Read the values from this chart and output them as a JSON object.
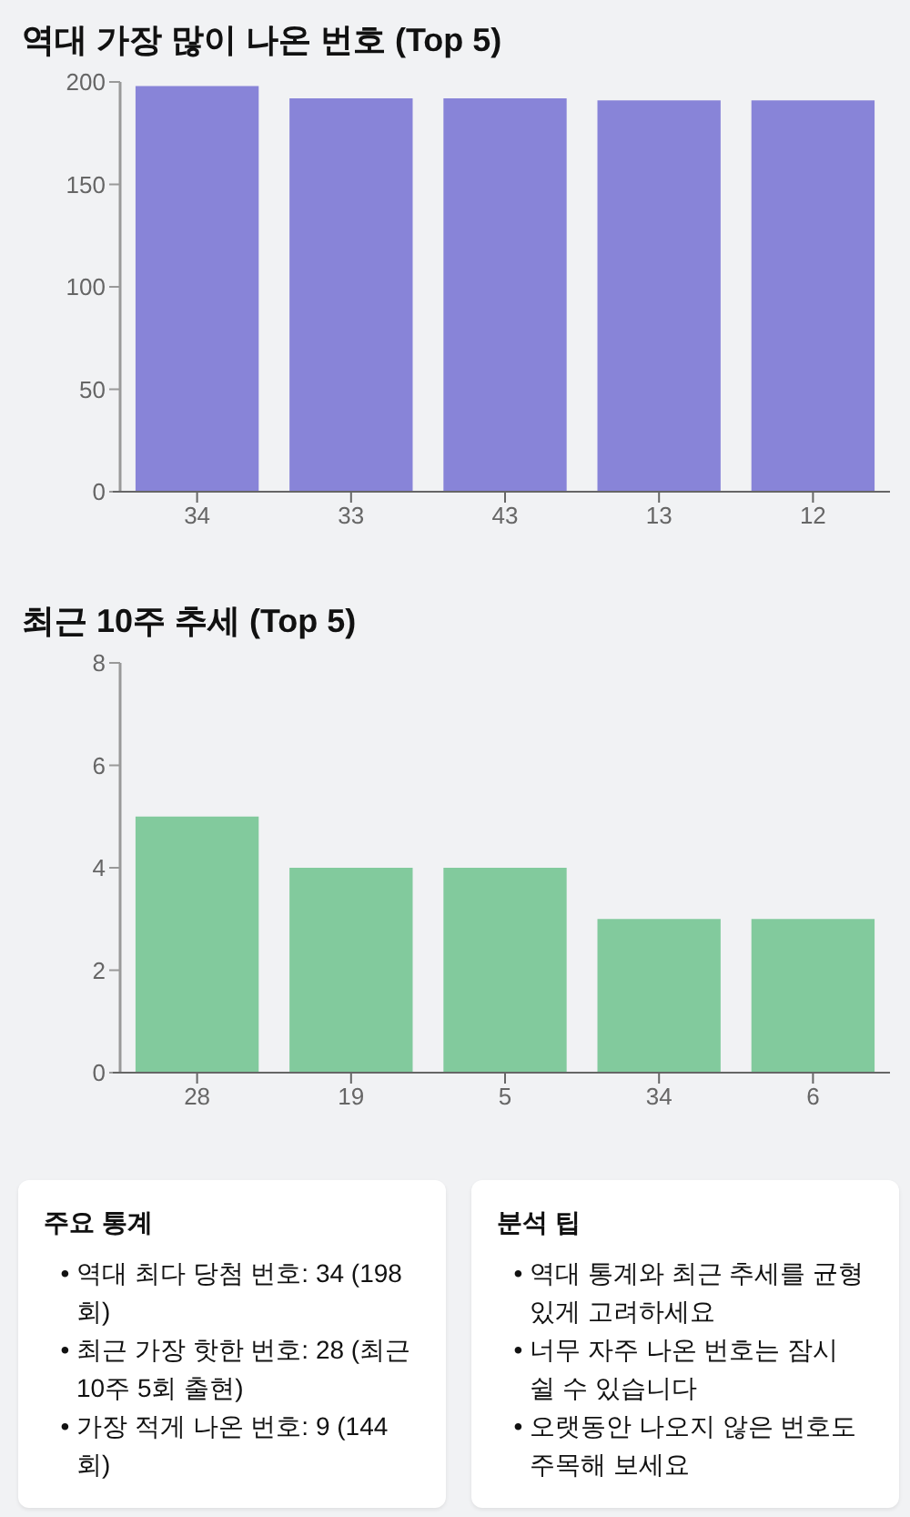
{
  "chart_data": [
    {
      "type": "bar",
      "title": "역대 가장 많이 나온 번호 (Top 5)",
      "categories": [
        "34",
        "33",
        "43",
        "13",
        "12"
      ],
      "values": [
        198,
        192,
        192,
        191,
        191
      ],
      "color": "#8884d8",
      "ylim": [
        0,
        200
      ],
      "yticks": [
        0,
        50,
        100,
        150,
        200
      ]
    },
    {
      "type": "bar",
      "title": "최근 10주 추세 (Top 5)",
      "categories": [
        "28",
        "19",
        "5",
        "34",
        "6"
      ],
      "values": [
        5,
        4,
        4,
        3,
        3
      ],
      "color": "#82ca9d",
      "ylim": [
        0,
        8
      ],
      "yticks": [
        0,
        2,
        4,
        6,
        8
      ]
    },
    {
      "type": "other",
      "title": "주요 통계",
      "annotations": [
        "• 역대 최다 당첨 번호: 34 (198회)",
        "• 최근 가장 핫한 번호: 28 (최근 10주 5회 출현)",
        "• 가장 적게 나온 번호: 9 (144회)"
      ]
    },
    {
      "type": "other",
      "title": "분석 팁",
      "annotations": [
        "• 역대 통계와 최근 추세를 균형 있게 고려하세요",
        "• 너무 자주 나온 번호는 잠시 쉴 수 있습니다",
        "• 오랫동안 나오지 않은 번호도 주목해 보세요"
      ]
    }
  ]
}
